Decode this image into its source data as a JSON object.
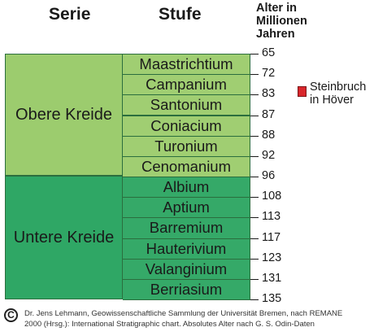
{
  "headers": {
    "serie": "Serie",
    "stufe": "Stufe",
    "alter": [
      "Alter in",
      "Millionen",
      "Jahren"
    ]
  },
  "series": [
    {
      "label": "Obere Kreide",
      "color": "#9ccc6e"
    },
    {
      "label": "Untere Kreide",
      "color": "#2fa765"
    }
  ],
  "stages": [
    {
      "label": "Maastrichtium",
      "series": "Obere Kreide"
    },
    {
      "label": "Campanium",
      "series": "Obere Kreide"
    },
    {
      "label": "Santonium",
      "series": "Obere Kreide"
    },
    {
      "label": "Coniacium",
      "series": "Obere Kreide"
    },
    {
      "label": "Turonium",
      "series": "Obere Kreide"
    },
    {
      "label": "Cenomanium",
      "series": "Obere Kreide"
    },
    {
      "label": "Albium",
      "series": "Untere Kreide"
    },
    {
      "label": "Aptium",
      "series": "Untere Kreide"
    },
    {
      "label": "Barremium",
      "series": "Untere Kreide"
    },
    {
      "label": "Hauterivium",
      "series": "Untere Kreide"
    },
    {
      "label": "Valanginium",
      "series": "Untere Kreide"
    },
    {
      "label": "Berriasium",
      "series": "Untere Kreide"
    }
  ],
  "ages": [
    "65",
    "72",
    "83",
    "87",
    "88",
    "92",
    "96",
    "108",
    "113",
    "117",
    "123",
    "131",
    "135"
  ],
  "legend": {
    "marker_color": "#d9262b",
    "label": [
      "Steinbruch",
      "in Höver"
    ]
  },
  "footer": {
    "symbol": "C",
    "lines": [
      "Dr. Jens Lehmann, Geowissenschaftliche Sammlung der Universität Bremen, nach REMANE",
      "2000 (Hrsg.): International Stratigraphic chart. Absolutes Alter nach G. S. Odin-Daten"
    ]
  }
}
